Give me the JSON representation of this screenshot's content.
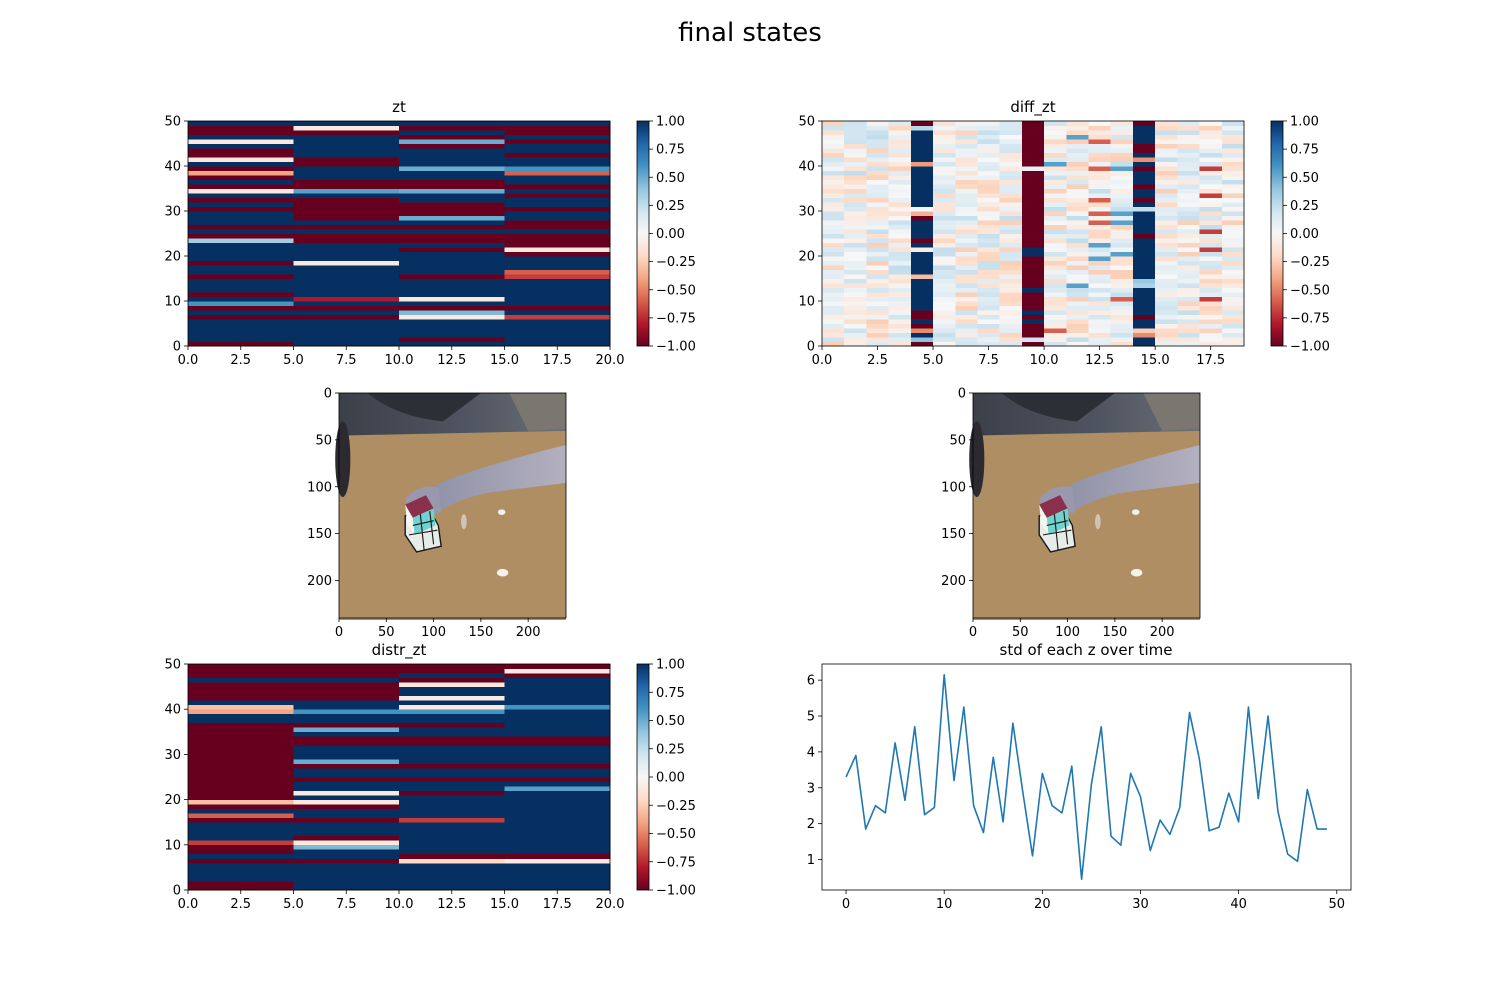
{
  "figure_title": "final states",
  "colors": {
    "cmap_low": "#67001f",
    "cmap_mid": "#f7f7f7",
    "cmap_high": "#053061",
    "line": "#1f77b4",
    "table": "#b08e63"
  },
  "chart_data": [
    {
      "type": "heatmap",
      "title": "zt",
      "colormap": "RdBu",
      "xlim": [
        0,
        20
      ],
      "ylim": [
        0,
        50
      ],
      "x_ticks": [
        "0.0",
        "2.5",
        "5.0",
        "7.5",
        "10.0",
        "12.5",
        "15.0",
        "17.5",
        "20.0"
      ],
      "y_ticks": [
        "0",
        "10",
        "20",
        "30",
        "40",
        "50"
      ],
      "colorbar_ticks": [
        "1.00",
        "0.75",
        "0.50",
        "0.25",
        "0.00",
        "−0.25",
        "−0.50",
        "−0.75",
        "−1.00"
      ],
      "value_range": [
        -1,
        1
      ],
      "column_blocks": [
        [
          0,
          5
        ],
        [
          5,
          10
        ],
        [
          10,
          15
        ],
        [
          15,
          20
        ]
      ],
      "rows": [
        [
          -1,
          1,
          1,
          1
        ],
        [
          1,
          1,
          -1,
          1
        ],
        [
          1,
          1,
          1,
          1
        ],
        [
          1,
          1,
          1,
          1
        ],
        [
          1,
          1,
          1,
          1
        ],
        [
          1,
          1,
          1,
          1
        ],
        [
          -1,
          -1,
          -0.1,
          -0.7
        ],
        [
          1,
          1,
          0.45,
          1
        ],
        [
          -1,
          -1,
          -1,
          -1
        ],
        [
          0.6,
          1,
          1,
          1
        ],
        [
          1,
          -0.8,
          -0.1,
          1
        ],
        [
          -1,
          1,
          1,
          1
        ],
        [
          1,
          1,
          1,
          1
        ],
        [
          1,
          1,
          1,
          1
        ],
        [
          1,
          1,
          1,
          1
        ],
        [
          -1,
          1,
          -1,
          -0.7
        ],
        [
          1,
          1,
          1,
          -0.6
        ],
        [
          1,
          1,
          1,
          1
        ],
        [
          -1,
          -0.1,
          1,
          1
        ],
        [
          1,
          1,
          1,
          1
        ],
        [
          1,
          1,
          1,
          -1
        ],
        [
          1,
          1,
          -1,
          -0.1
        ],
        [
          1,
          1,
          1,
          -1
        ],
        [
          0.35,
          -1,
          -1,
          -1
        ],
        [
          -1,
          -1,
          -1,
          -1
        ],
        [
          1,
          1,
          1,
          1
        ],
        [
          -1,
          -1,
          -1,
          -1
        ],
        [
          1,
          1,
          1,
          -1
        ],
        [
          1,
          -1,
          0.5,
          1
        ],
        [
          1,
          -1,
          -1,
          1
        ],
        [
          -1,
          -1,
          -1,
          -1
        ],
        [
          1,
          -1,
          -1,
          1
        ],
        [
          -1,
          -1,
          1,
          1
        ],
        [
          1,
          1,
          1,
          -1
        ],
        [
          -0.1,
          0.55,
          0.5,
          1
        ],
        [
          -1,
          -1,
          -1,
          -1
        ],
        [
          1,
          -1,
          -1,
          1
        ],
        [
          -1,
          1,
          1,
          1
        ],
        [
          -0.4,
          1,
          1,
          -0.6
        ],
        [
          -1,
          1,
          0.5,
          0.6
        ],
        [
          1,
          -1,
          1,
          1
        ],
        [
          -0.1,
          -1,
          1,
          1
        ],
        [
          -1,
          1,
          1,
          -1
        ],
        [
          -1,
          1,
          1,
          1
        ],
        [
          1,
          1,
          -1,
          1
        ],
        [
          -0.1,
          1,
          0.5,
          -1
        ],
        [
          1,
          1,
          -1,
          1
        ],
        [
          -1,
          -1,
          1,
          -1
        ],
        [
          -1,
          -0.1,
          -1,
          -1
        ],
        [
          1,
          1,
          1,
          1
        ]
      ]
    },
    {
      "type": "heatmap",
      "title": "diff_zt",
      "colormap": "RdBu",
      "xlim": [
        0,
        19
      ],
      "ylim": [
        0,
        50
      ],
      "x_ticks": [
        "0.0",
        "2.5",
        "5.0",
        "7.5",
        "10.0",
        "12.5",
        "15.0",
        "17.5"
      ],
      "y_ticks": [
        "0",
        "10",
        "20",
        "30",
        "40",
        "50"
      ],
      "colorbar_ticks": [
        "1.00",
        "0.75",
        "0.50",
        "0.25",
        "0.00",
        "−0.25",
        "−0.50",
        "−0.75",
        "−1.00"
      ],
      "value_range": [
        -1,
        1
      ],
      "extreme_columns": [
        4,
        9,
        14
      ],
      "pale_amplitude": 0.25,
      "strong_cells_col17": [
        10,
        21,
        25,
        33,
        39
      ]
    },
    {
      "type": "image",
      "title": "",
      "xlim": [
        0,
        240
      ],
      "ylim": [
        240,
        0
      ],
      "x_ticks": [
        "0",
        "50",
        "100",
        "150",
        "200"
      ],
      "y_ticks": [
        "0",
        "50",
        "100",
        "150",
        "200"
      ]
    },
    {
      "type": "image",
      "title": "",
      "xlim": [
        0,
        240
      ],
      "ylim": [
        240,
        0
      ],
      "x_ticks": [
        "0",
        "50",
        "100",
        "150",
        "200"
      ],
      "y_ticks": [
        "0",
        "50",
        "100",
        "150",
        "200"
      ]
    },
    {
      "type": "heatmap",
      "title": "distr_zt",
      "colormap": "RdBu",
      "xlim": [
        0,
        20
      ],
      "ylim": [
        0,
        50
      ],
      "x_ticks": [
        "0.0",
        "2.5",
        "5.0",
        "7.5",
        "10.0",
        "12.5",
        "15.0",
        "17.5",
        "20.0"
      ],
      "y_ticks": [
        "0",
        "10",
        "20",
        "30",
        "40",
        "50"
      ],
      "colorbar_ticks": [
        "1.00",
        "0.75",
        "0.50",
        "0.25",
        "0.00",
        "−0.25",
        "−0.50",
        "−0.75",
        "−1.00"
      ],
      "value_range": [
        -1,
        1
      ],
      "column_blocks": [
        [
          0,
          5
        ],
        [
          5,
          10
        ],
        [
          10,
          15
        ],
        [
          15,
          20
        ]
      ],
      "rows": [
        [
          -1,
          1,
          1,
          1
        ],
        [
          -1,
          1,
          1,
          1
        ],
        [
          1,
          1,
          1,
          1
        ],
        [
          1,
          1,
          1,
          1
        ],
        [
          1,
          1,
          1,
          1
        ],
        [
          1,
          1,
          1,
          1
        ],
        [
          -1,
          -1,
          -0.2,
          -0.1
        ],
        [
          1,
          1,
          -1,
          -1
        ],
        [
          -1,
          1,
          1,
          1
        ],
        [
          -1,
          0.45,
          1,
          1
        ],
        [
          -0.7,
          -0.1,
          1,
          1
        ],
        [
          1,
          -1,
          1,
          1
        ],
        [
          1,
          1,
          1,
          1
        ],
        [
          1,
          1,
          1,
          1
        ],
        [
          1,
          1,
          1,
          1
        ],
        [
          -1,
          -1,
          -0.7,
          1
        ],
        [
          -0.6,
          1,
          1,
          1
        ],
        [
          1,
          1,
          1,
          1
        ],
        [
          -1,
          -1,
          1,
          1
        ],
        [
          -0.3,
          -0.1,
          1,
          1
        ],
        [
          -1,
          1,
          1,
          1
        ],
        [
          -1,
          -0.1,
          -1,
          1
        ],
        [
          -1,
          1,
          1,
          0.55
        ],
        [
          -1,
          1,
          1,
          1
        ],
        [
          -1,
          -1,
          -1,
          -1
        ],
        [
          -1,
          1,
          1,
          1
        ],
        [
          -1,
          1,
          1,
          1
        ],
        [
          -1,
          -1,
          -1,
          -1
        ],
        [
          -1,
          0.5,
          1,
          1
        ],
        [
          -1,
          1,
          1,
          1
        ],
        [
          -1,
          1,
          1,
          1
        ],
        [
          -1,
          1,
          1,
          1
        ],
        [
          -1,
          -1,
          -1,
          -1
        ],
        [
          -1,
          -1,
          -1,
          -1
        ],
        [
          -1,
          1,
          1,
          1
        ],
        [
          -1,
          0.5,
          1,
          1
        ],
        [
          -1,
          -1,
          -1,
          1
        ],
        [
          1,
          1,
          1,
          1
        ],
        [
          1,
          1,
          1,
          1
        ],
        [
          -0.4,
          0.6,
          0.6,
          1
        ],
        [
          -0.3,
          1,
          -0.1,
          0.6
        ],
        [
          1,
          1,
          1,
          1
        ],
        [
          -1,
          -1,
          -0.1,
          1
        ],
        [
          -1,
          -1,
          1,
          1
        ],
        [
          -1,
          -1,
          1,
          1
        ],
        [
          -1,
          -1,
          -0.1,
          1
        ],
        [
          1,
          1,
          -1,
          1
        ],
        [
          -1,
          -1,
          1,
          -1
        ],
        [
          -1,
          -1,
          -1,
          -0.1
        ],
        [
          -1,
          -1,
          -1,
          -1
        ]
      ]
    },
    {
      "type": "line",
      "title": "std of each z over time",
      "xlim": [
        -2.45,
        51.45
      ],
      "ylim": [
        0.15,
        6.45
      ],
      "x_ticks": [
        0,
        10,
        20,
        30,
        40,
        50
      ],
      "y_ticks": [
        1,
        2,
        3,
        4,
        5,
        6
      ],
      "x": [
        0,
        1,
        2,
        3,
        4,
        5,
        6,
        7,
        8,
        9,
        10,
        11,
        12,
        13,
        14,
        15,
        16,
        17,
        18,
        19,
        20,
        21,
        22,
        23,
        24,
        25,
        26,
        27,
        28,
        29,
        30,
        31,
        32,
        33,
        34,
        35,
        36,
        37,
        38,
        39,
        40,
        41,
        42,
        43,
        44,
        45,
        46,
        47,
        48,
        49
      ],
      "series": [
        {
          "values": [
            3.3,
            3.9,
            1.85,
            2.5,
            2.3,
            4.25,
            2.65,
            4.7,
            2.25,
            2.45,
            6.15,
            3.2,
            5.25,
            2.5,
            1.75,
            3.85,
            2.05,
            4.8,
            2.9,
            1.1,
            3.4,
            2.5,
            2.3,
            3.6,
            0.45,
            3.1,
            4.7,
            1.65,
            1.4,
            3.4,
            2.75,
            1.25,
            2.1,
            1.7,
            2.45,
            5.1,
            3.8,
            1.8,
            1.9,
            2.85,
            2.05,
            5.25,
            2.7,
            5.0,
            2.35,
            1.15,
            0.95,
            2.95,
            1.85,
            1.85
          ]
        }
      ]
    }
  ]
}
